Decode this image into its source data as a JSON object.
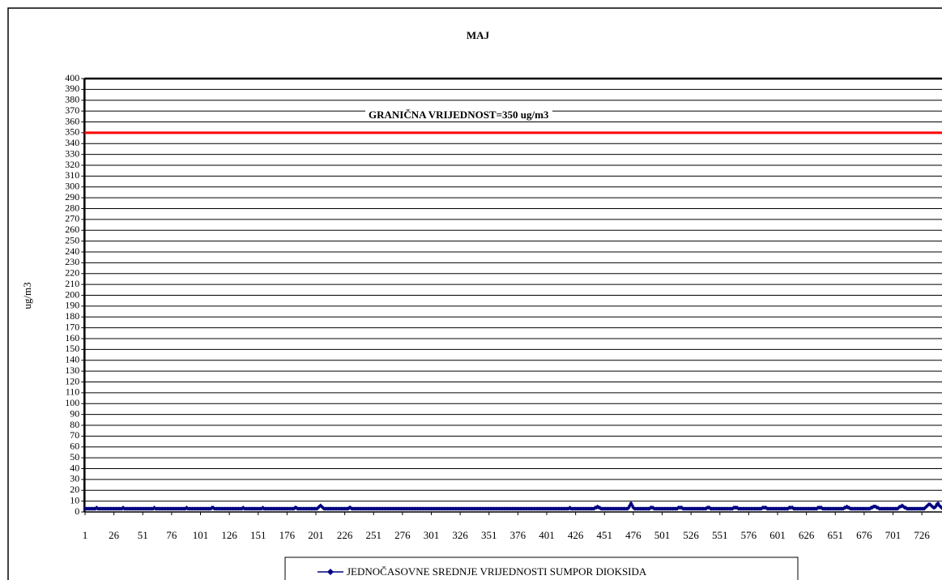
{
  "chart_data": {
    "type": "line",
    "title": "MAJ",
    "y_label": "ug/m3",
    "ylim": [
      0,
      400
    ],
    "yticks": [
      0,
      10,
      20,
      30,
      40,
      50,
      60,
      70,
      80,
      90,
      100,
      110,
      120,
      130,
      140,
      150,
      160,
      170,
      180,
      190,
      200,
      210,
      220,
      230,
      240,
      250,
      260,
      270,
      280,
      290,
      300,
      310,
      320,
      330,
      340,
      350,
      360,
      370,
      380,
      390,
      400
    ],
    "xlim": [
      0.5,
      744.5
    ],
    "xticks": [
      1,
      26,
      51,
      76,
      101,
      126,
      151,
      176,
      201,
      226,
      251,
      276,
      301,
      326,
      351,
      376,
      401,
      426,
      451,
      476,
      501,
      526,
      551,
      576,
      601,
      626,
      651,
      676,
      701,
      726
    ],
    "grid": true,
    "reference_line": {
      "value": 350,
      "label": "GRANIČNA VRIJEDNOST=350 ug/m3",
      "color": "#ff0000"
    },
    "x": [
      1,
      2,
      3,
      4,
      5,
      6,
      7,
      8,
      9,
      10,
      11,
      12,
      13,
      14,
      15,
      16,
      17,
      18,
      19,
      20,
      21,
      22,
      23,
      24,
      25,
      26,
      27,
      28,
      29,
      30,
      31,
      32,
      33,
      34,
      35,
      36,
      37,
      38,
      39,
      40,
      41,
      42,
      43,
      44,
      45,
      46,
      47,
      48,
      49,
      50,
      51,
      52,
      53,
      54,
      55,
      56,
      57,
      58,
      59,
      60,
      61,
      62,
      63,
      64,
      65,
      66,
      67,
      68,
      69,
      70,
      71,
      72,
      73,
      74,
      75,
      76,
      77,
      78,
      79,
      80,
      81,
      82,
      83,
      84,
      85,
      86,
      87,
      88,
      89,
      90,
      91,
      92,
      93,
      94,
      95,
      96,
      97,
      98,
      99,
      100,
      101,
      102,
      103,
      104,
      105,
      106,
      107,
      108,
      109,
      110,
      111,
      112,
      113,
      114,
      115,
      116,
      117,
      118,
      119,
      120,
      121,
      122,
      123,
      124,
      125,
      126,
      127,
      128,
      129,
      130,
      131,
      132,
      133,
      134,
      135,
      136,
      137,
      138,
      139,
      140,
      141,
      142,
      143,
      144,
      145,
      146,
      147,
      148,
      149,
      150,
      151,
      152,
      153,
      154,
      155,
      156,
      157,
      158,
      159,
      160,
      161,
      162,
      163,
      164,
      165,
      166,
      167,
      168,
      169,
      170,
      171,
      172,
      173,
      174,
      175,
      176,
      177,
      178,
      179,
      180,
      181,
      182,
      183,
      184,
      185,
      186,
      187,
      188,
      189,
      190,
      191,
      192,
      193,
      194,
      195,
      196,
      197,
      198,
      199,
      200,
      201,
      202,
      203,
      204,
      205,
      206,
      207,
      208,
      209,
      210,
      211,
      212,
      213,
      214,
      215,
      216,
      217,
      218,
      219,
      220,
      221,
      222,
      223,
      224,
      225,
      226,
      227,
      228,
      229,
      230,
      231,
      232,
      233,
      234,
      235,
      236,
      237,
      238,
      239,
      240,
      241,
      242,
      243,
      244,
      245,
      246,
      247,
      248,
      249,
      250,
      251,
      252,
      253,
      254,
      255,
      256,
      257,
      258,
      259,
      260,
      261,
      262,
      263,
      264,
      265,
      266,
      267,
      268,
      269,
      270,
      271,
      272,
      273,
      274,
      275,
      276,
      277,
      278,
      279,
      280,
      281,
      282,
      283,
      284,
      285,
      286,
      287,
      288,
      289,
      290,
      291,
      292,
      293,
      294,
      295,
      296,
      297,
      298,
      299,
      300,
      301,
      302,
      303,
      304,
      305,
      306,
      307,
      308,
      309,
      310,
      311,
      312,
      313,
      314,
      315,
      316,
      317,
      318,
      319,
      320,
      321,
      322,
      323,
      324,
      325,
      326,
      327,
      328,
      329,
      330,
      331,
      332,
      333,
      334,
      335,
      336,
      337,
      338,
      339,
      340,
      341,
      342,
      343,
      344,
      345,
      346,
      347,
      348,
      349,
      350,
      351,
      352,
      353,
      354,
      355,
      356,
      357,
      358,
      359,
      360,
      361,
      362,
      363,
      364,
      365,
      366,
      367,
      368,
      369,
      370,
      371,
      372,
      373,
      374,
      375,
      376,
      377,
      378,
      379,
      380,
      381,
      382,
      383,
      384,
      385,
      386,
      387,
      388,
      389,
      390,
      391,
      392,
      393,
      394,
      395,
      396,
      397,
      398,
      399,
      400,
      401,
      402,
      403,
      404,
      405,
      406,
      407,
      408,
      409,
      410,
      411,
      412,
      413,
      414,
      415,
      416,
      417,
      418,
      419,
      420,
      421,
      422,
      423,
      424,
      425,
      426,
      427,
      428,
      429,
      430,
      431,
      432,
      433,
      434,
      435,
      436,
      437,
      438,
      439,
      440,
      441,
      442,
      443,
      444,
      445,
      446,
      447,
      448,
      449,
      450,
      451,
      452,
      453,
      454,
      455,
      456,
      457,
      458,
      459,
      460,
      461,
      462,
      463,
      464,
      465,
      466,
      467,
      468,
      469,
      470,
      471,
      472,
      473,
      474,
      475,
      476,
      477,
      478,
      479,
      480,
      481,
      482,
      483,
      484,
      485,
      486,
      487,
      488,
      489,
      490,
      491,
      492,
      493,
      494,
      495,
      496,
      497,
      498,
      499,
      500,
      501,
      502,
      503,
      504,
      505,
      506,
      507,
      508,
      509,
      510,
      511,
      512,
      513,
      514,
      515,
      516,
      517,
      518,
      519,
      520,
      521,
      522,
      523,
      524,
      525,
      526,
      527,
      528,
      529,
      530,
      531,
      532,
      533,
      534,
      535,
      536,
      537,
      538,
      539,
      540,
      541,
      542,
      543,
      544,
      545,
      546,
      547,
      548,
      549,
      550,
      551,
      552,
      553,
      554,
      555,
      556,
      557,
      558,
      559,
      560,
      561,
      562,
      563,
      564,
      565,
      566,
      567,
      568,
      569,
      570,
      571,
      572,
      573,
      574,
      575,
      576,
      577,
      578,
      579,
      580,
      581,
      582,
      583,
      584,
      585,
      586,
      587,
      588,
      589,
      590,
      591,
      592,
      593,
      594,
      595,
      596,
      597,
      598,
      599,
      600,
      601,
      602,
      603,
      604,
      605,
      606,
      607,
      608,
      609,
      610,
      611,
      612,
      613,
      614,
      615,
      616,
      617,
      618,
      619,
      620,
      621,
      622,
      623,
      624,
      625,
      626,
      627,
      628,
      629,
      630,
      631,
      632,
      633,
      634,
      635,
      636,
      637,
      638,
      639,
      640,
      641,
      642,
      643,
      644,
      645,
      646,
      647,
      648,
      649,
      650,
      651,
      652,
      653,
      654,
      655,
      656,
      657,
      658,
      659,
      660,
      661,
      662,
      663,
      664,
      665,
      666,
      667,
      668,
      669,
      670,
      671,
      672,
      673,
      674,
      675,
      676,
      677,
      678,
      679,
      680,
      681,
      682,
      683,
      684,
      685,
      686,
      687,
      688,
      689,
      690,
      691,
      692,
      693,
      694,
      695,
      696,
      697,
      698,
      699,
      700,
      701,
      702,
      703,
      704,
      705,
      706,
      707,
      708,
      709,
      710,
      711,
      712,
      713,
      714,
      715,
      716,
      717,
      718,
      719,
      720,
      721,
      722,
      723,
      724,
      725,
      726,
      727,
      728,
      729,
      730,
      731,
      732,
      733,
      734,
      735,
      736,
      737,
      738,
      739,
      740,
      741,
      742,
      743,
      744
    ],
    "series": [
      {
        "name": "JEDNOČASOVNE SREDNJE VRIJEDNOSTI SUMPOR DIOKSIDA",
        "color": "#000080",
        "values": [
          3,
          3,
          3,
          3,
          3,
          3,
          3,
          3,
          3,
          3,
          4,
          3,
          3,
          3,
          3,
          3,
          3,
          3,
          3,
          3,
          3,
          3,
          3,
          3,
          3,
          3,
          3,
          3,
          3,
          3,
          3,
          3,
          3,
          4,
          3,
          3,
          3,
          3,
          3,
          3,
          3,
          3,
          3,
          3,
          3,
          3,
          3,
          3,
          3,
          3,
          3,
          3,
          3,
          3,
          3,
          3,
          3,
          3,
          3,
          3,
          4,
          3,
          3,
          3,
          3,
          3,
          3,
          3,
          3,
          3,
          3,
          3,
          3,
          3,
          3,
          3,
          3,
          3,
          3,
          3,
          3,
          3,
          3,
          3,
          3,
          3,
          3,
          3,
          4,
          3,
          3,
          3,
          3,
          3,
          3,
          3,
          3,
          3,
          3,
          3,
          3,
          3,
          3,
          3,
          3,
          3,
          3,
          3,
          3,
          3,
          4,
          4,
          3,
          3,
          3,
          3,
          3,
          3,
          3,
          3,
          3,
          3,
          3,
          3,
          3,
          3,
          3,
          3,
          3,
          3,
          3,
          3,
          3,
          3,
          3,
          3,
          3,
          4,
          3,
          3,
          3,
          3,
          3,
          3,
          3,
          3,
          3,
          3,
          3,
          3,
          3,
          3,
          3,
          3,
          4,
          3,
          3,
          3,
          3,
          3,
          3,
          3,
          3,
          3,
          3,
          3,
          3,
          3,
          3,
          3,
          3,
          3,
          3,
          3,
          3,
          3,
          3,
          3,
          3,
          3,
          3,
          3,
          4,
          4,
          3,
          3,
          3,
          3,
          3,
          3,
          3,
          3,
          3,
          3,
          3,
          3,
          3,
          3,
          3,
          3,
          3,
          3,
          4,
          5,
          6,
          5,
          4,
          3,
          3,
          3,
          3,
          3,
          3,
          3,
          3,
          3,
          3,
          3,
          3,
          3,
          3,
          3,
          3,
          3,
          3,
          3,
          3,
          3,
          3,
          4,
          4,
          3,
          3,
          3,
          3,
          3,
          3,
          3,
          3,
          3,
          3,
          3,
          3,
          3,
          3,
          3,
          3,
          3,
          3,
          3,
          3,
          3,
          3,
          3,
          3,
          3,
          3,
          3,
          3,
          3,
          3,
          3,
          3,
          3,
          3,
          3,
          3,
          3,
          3,
          3,
          3,
          3,
          3,
          3,
          3,
          3,
          3,
          3,
          3,
          3,
          3,
          3,
          3,
          3,
          3,
          3,
          3,
          3,
          3,
          3,
          3,
          3,
          3,
          3,
          3,
          3,
          3,
          3,
          3,
          3,
          3,
          3,
          3,
          3,
          3,
          3,
          3,
          3,
          3,
          3,
          3,
          3,
          3,
          3,
          3,
          3,
          3,
          3,
          3,
          3,
          3,
          3,
          3,
          3,
          3,
          3,
          3,
          3,
          3,
          3,
          3,
          3,
          3,
          3,
          3,
          3,
          3,
          3,
          3,
          3,
          3,
          3,
          3,
          3,
          3,
          3,
          3,
          3,
          3,
          3,
          3,
          3,
          3,
          3,
          3,
          3,
          3,
          3,
          3,
          3,
          3,
          3,
          3,
          3,
          3,
          3,
          3,
          3,
          3,
          3,
          3,
          3,
          3,
          3,
          3,
          3,
          3,
          3,
          3,
          3,
          3,
          3,
          3,
          3,
          3,
          3,
          3,
          3,
          3,
          3,
          3,
          3,
          3,
          3,
          3,
          3,
          3,
          3,
          3,
          3,
          3,
          3,
          3,
          3,
          3,
          3,
          3,
          3,
          3,
          3,
          3,
          3,
          3,
          3,
          3,
          3,
          3,
          3,
          3,
          3,
          4,
          3,
          3,
          3,
          3,
          3,
          3,
          3,
          3,
          3,
          3,
          3,
          3,
          3,
          3,
          3,
          3,
          3,
          3,
          3,
          3,
          3,
          4,
          4,
          5,
          4,
          4,
          3,
          3,
          3,
          3,
          3,
          3,
          3,
          3,
          3,
          3,
          3,
          3,
          3,
          3,
          3,
          3,
          3,
          3,
          3,
          3,
          3,
          3,
          3,
          3,
          4,
          6,
          8,
          6,
          4,
          3,
          3,
          3,
          3,
          3,
          3,
          3,
          3,
          3,
          3,
          3,
          3,
          3,
          3,
          4,
          4,
          4,
          3,
          3,
          3,
          3,
          3,
          3,
          3,
          3,
          3,
          3,
          3,
          3,
          3,
          3,
          3,
          3,
          3,
          3,
          3,
          3,
          3,
          4,
          4,
          4,
          4,
          3,
          3,
          3,
          3,
          3,
          3,
          3,
          3,
          3,
          3,
          3,
          3,
          3,
          3,
          3,
          3,
          3,
          3,
          3,
          3,
          3,
          4,
          4,
          4,
          3,
          3,
          3,
          3,
          3,
          3,
          3,
          3,
          3,
          3,
          3,
          3,
          3,
          3,
          3,
          3,
          3,
          3,
          3,
          3,
          4,
          4,
          4,
          4,
          3,
          3,
          3,
          3,
          3,
          3,
          3,
          3,
          3,
          3,
          3,
          3,
          3,
          3,
          3,
          3,
          3,
          3,
          3,
          3,
          3,
          4,
          4,
          4,
          4,
          3,
          3,
          3,
          3,
          3,
          3,
          3,
          3,
          3,
          3,
          3,
          3,
          3,
          3,
          3,
          3,
          3,
          3,
          3,
          4,
          4,
          4,
          4,
          3,
          3,
          3,
          3,
          3,
          3,
          3,
          3,
          3,
          3,
          3,
          3,
          3,
          3,
          3,
          3,
          3,
          3,
          3,
          3,
          3,
          4,
          4,
          4,
          4,
          3,
          3,
          3,
          3,
          3,
          3,
          3,
          3,
          3,
          3,
          3,
          3,
          3,
          3,
          3,
          3,
          3,
          3,
          3,
          4,
          4,
          5,
          4,
          4,
          3,
          3,
          3,
          3,
          3,
          3,
          3,
          3,
          3,
          3,
          3,
          3,
          3,
          3,
          3,
          3,
          3,
          3,
          4,
          4,
          5,
          5,
          5,
          4,
          4,
          3,
          3,
          3,
          3,
          3,
          3,
          3,
          3,
          3,
          3,
          3,
          3,
          3,
          3,
          3,
          3,
          3,
          4,
          5,
          5,
          6,
          5,
          4,
          4,
          3,
          3,
          3,
          3,
          3,
          3,
          3,
          3,
          3,
          3,
          3,
          3,
          3,
          3,
          3,
          3,
          4,
          5,
          6,
          7,
          7,
          6,
          5,
          4,
          4,
          5,
          7,
          8,
          6,
          5,
          4,
          3
        ]
      }
    ]
  }
}
